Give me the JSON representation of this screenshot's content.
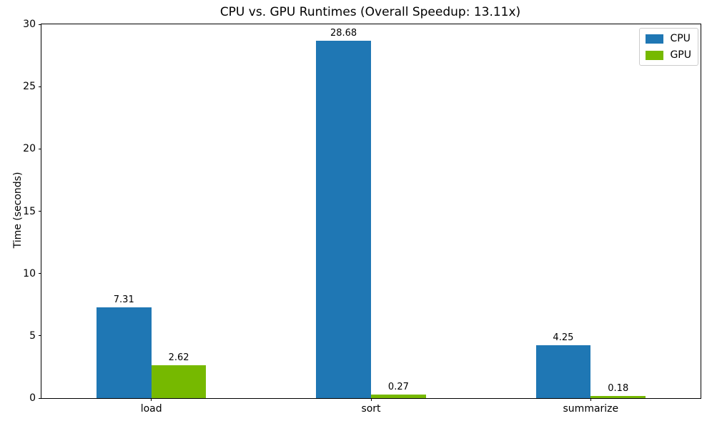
{
  "chart_data": {
    "type": "bar",
    "title": "CPU vs. GPU Runtimes (Overall Speedup: 13.11x)",
    "ylabel": "Time (seconds)",
    "xlabel": "",
    "categories": [
      "load",
      "sort",
      "summarize"
    ],
    "series": [
      {
        "name": "CPU",
        "color": "#1f77b4",
        "values": [
          7.31,
          28.68,
          4.25
        ],
        "labels": [
          "7.31",
          "28.68",
          "4.25"
        ]
      },
      {
        "name": "GPU",
        "color": "#76b900",
        "values": [
          2.62,
          0.27,
          0.18
        ],
        "labels": [
          "2.62",
          "0.27",
          "0.18"
        ]
      }
    ],
    "ylim": [
      0,
      30
    ],
    "yticks": [
      0,
      5,
      10,
      15,
      20,
      25,
      30
    ],
    "grid": false,
    "legend_position": "upper right",
    "bar_labels_shown": true
  }
}
